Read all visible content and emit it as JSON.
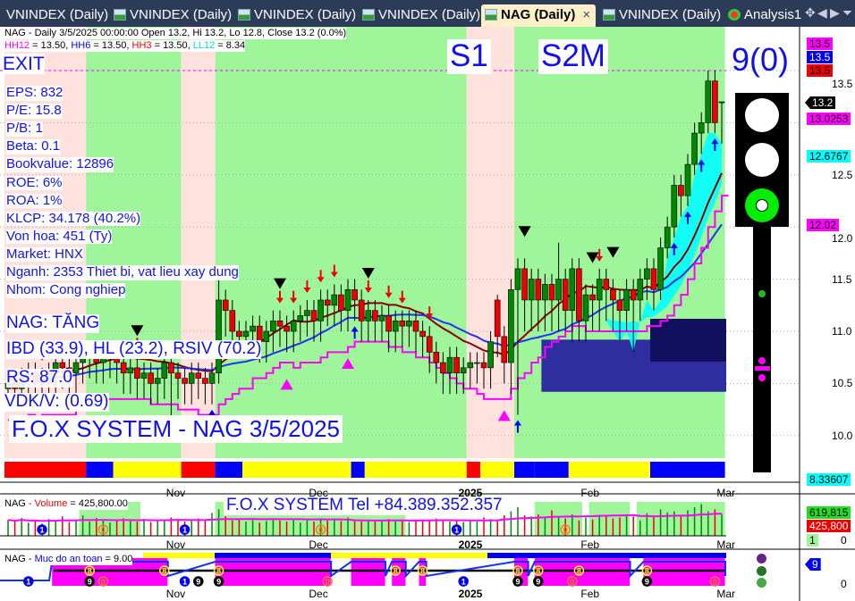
{
  "tabs": [
    {
      "label": "VNINDEX (Daily)",
      "active": false
    },
    {
      "label": "VNINDEX (Daily)",
      "active": false
    },
    {
      "label": "VNINDEX (Daily)",
      "active": false
    },
    {
      "label": "VNINDEX (Daily)",
      "active": false
    },
    {
      "label": "NAG (Daily)",
      "active": true
    },
    {
      "label": "VNINDEX (Daily)",
      "active": false
    },
    {
      "label": "Analysis1",
      "active": false
    }
  ],
  "tab_close": "×",
  "tab_controls": [
    "✥",
    "◀",
    "▶",
    "⏷"
  ],
  "header": {
    "line1": "NAG - Daily 3/5/2025 00:00:00 Open 13.2, Hi 13.2, Lo 12.8, Close 13.2 (0.0%)",
    "hh12": "HH12",
    "hh12_val": " = 13.50, ",
    "hh6": "HH6",
    "hh6_val": " = 13.50, ",
    "hh3": "HH3",
    "hh3_val": " = 13.50, ",
    "ll12": "LL12",
    "ll12_val": " = 8.34"
  },
  "signal": "EXIT",
  "fundamentals": [
    "EPS: 832",
    "P/E: 15.8",
    "P/B: 1",
    "Beta: 0.1",
    "Bookvalue: 12896",
    "ROE: 6%",
    "ROA: 1%",
    "KLCP: 34.178 (40.2%)",
    "Von hoa: 451 (Ty)",
    "Market: HNX",
    "Nganh: 2353 Thiet bi, vat lieu xay dung",
    "Nhom: Cong nghiep"
  ],
  "status": {
    "trend": "NAG: TĂNG",
    "ratings": "IBD (33.9), HL (23.2), RSIV (70.2)",
    "rs": "RS: 87.0",
    "vdk": "VDK/V:  (0.69)",
    "brand": "F.O.X SYSTEM - NAG 3/5/2025"
  },
  "phase_labels": [
    "S1",
    "S2M"
  ],
  "score": "9(0)",
  "traffic_light": {
    "red": "off",
    "yellow": "off",
    "green": "on"
  },
  "price_axis": {
    "ticks": [
      "13.5",
      "12.5",
      "12.0",
      "11.5",
      "11.0",
      "10.5",
      "10.0"
    ],
    "tags": [
      {
        "text": "13.5",
        "color": "#ff00ff"
      },
      {
        "text": "13.5",
        "color": "#0000ee"
      },
      {
        "text": "13.5",
        "color": "#ee0000"
      },
      {
        "text": "13.2",
        "color": "#000000"
      },
      {
        "text": "13.0253",
        "color": "#ff00ff"
      },
      {
        "text": "12.6767",
        "color": "#00ffff"
      },
      {
        "text": "12.02",
        "color": "#ff00ff"
      },
      {
        "text": "8.33607",
        "color": "#00ffff"
      }
    ]
  },
  "date_axis": [
    "Nov",
    "Dec",
    "2025",
    "Feb",
    "Mar"
  ],
  "colors": {
    "up": "#008800",
    "down": "#ee0000",
    "bg_green": "#9ef59a",
    "bg_pink": "#ffe2de",
    "accent": "#1010ee",
    "tabbar": "#2c3b57"
  },
  "volume_pane": {
    "title": "NAG",
    "title_sep": " - ",
    "series": "Volume",
    "value": " = 425,800.00",
    "banner": "F.O.X SYSTEM Tel +84.389.352.357",
    "tags": [
      {
        "text": "619,815",
        "color": "#22cc22"
      },
      {
        "text": "425,800",
        "color": "#ee0000"
      }
    ],
    "zero": "0",
    "one": "1"
  },
  "safety_pane": {
    "title": "NAG",
    "title_sep": " - ",
    "series": "Muc do an toan",
    "value": " = 9.00",
    "tag": "9",
    "zero": "0"
  },
  "chart_data": {
    "type": "candlestick",
    "symbol": "NAG",
    "interval": "Daily",
    "ylim": [
      9.6,
      13.9
    ],
    "candles_ohlc": [
      [
        10.45,
        10.6,
        10.3,
        10.5
      ],
      [
        10.5,
        10.6,
        10.25,
        10.45
      ],
      [
        10.45,
        10.65,
        10.25,
        10.55
      ],
      [
        10.55,
        10.7,
        10.35,
        10.6
      ],
      [
        10.6,
        10.7,
        10.3,
        10.5
      ],
      [
        10.5,
        10.65,
        10.3,
        10.55
      ],
      [
        10.55,
        10.7,
        10.35,
        10.6
      ],
      [
        10.6,
        10.8,
        10.4,
        10.7
      ],
      [
        10.7,
        10.8,
        10.45,
        10.65
      ],
      [
        10.65,
        10.75,
        10.4,
        10.6
      ],
      [
        10.6,
        10.8,
        10.4,
        10.7
      ],
      [
        10.7,
        10.85,
        10.5,
        10.75
      ],
      [
        10.75,
        10.9,
        10.55,
        10.8
      ],
      [
        10.8,
        10.9,
        10.5,
        10.7
      ],
      [
        10.7,
        10.85,
        10.5,
        10.75
      ],
      [
        10.75,
        10.9,
        10.55,
        10.8
      ],
      [
        10.8,
        10.9,
        10.5,
        10.7
      ],
      [
        10.7,
        10.8,
        10.4,
        10.6
      ],
      [
        10.6,
        10.75,
        10.4,
        10.65
      ],
      [
        10.65,
        10.75,
        10.35,
        10.55
      ],
      [
        10.55,
        10.7,
        10.35,
        10.6
      ],
      [
        10.6,
        10.7,
        10.3,
        10.5
      ],
      [
        10.5,
        10.65,
        10.3,
        10.55
      ],
      [
        10.55,
        10.8,
        10.35,
        10.7
      ],
      [
        10.7,
        10.8,
        9.95,
        10.6
      ],
      [
        10.6,
        10.7,
        10.35,
        10.55
      ],
      [
        10.55,
        10.65,
        10.3,
        10.5
      ],
      [
        10.5,
        10.7,
        10.3,
        10.6
      ],
      [
        10.6,
        10.7,
        10.35,
        10.55
      ],
      [
        10.55,
        10.65,
        10.3,
        10.5
      ],
      [
        10.5,
        10.7,
        10.3,
        10.6
      ],
      [
        10.6,
        11.5,
        10.5,
        11.3
      ],
      [
        11.3,
        11.4,
        10.95,
        11.2
      ],
      [
        11.2,
        11.3,
        10.8,
        11.0
      ],
      [
        11.0,
        11.1,
        10.75,
        10.95
      ],
      [
        10.95,
        11.1,
        10.75,
        11.0
      ],
      [
        11.0,
        11.15,
        10.8,
        11.05
      ],
      [
        11.05,
        11.15,
        10.7,
        10.9
      ],
      [
        10.9,
        11.1,
        10.7,
        11.0
      ],
      [
        11.0,
        11.2,
        10.8,
        11.1
      ],
      [
        11.1,
        11.2,
        10.85,
        11.05
      ],
      [
        11.05,
        11.15,
        10.8,
        11.0
      ],
      [
        11.0,
        11.2,
        10.8,
        11.1
      ],
      [
        11.1,
        11.25,
        10.9,
        11.15
      ],
      [
        11.15,
        11.3,
        10.95,
        11.2
      ],
      [
        11.2,
        11.3,
        10.9,
        11.1
      ],
      [
        11.1,
        11.4,
        10.9,
        11.3
      ],
      [
        11.3,
        11.4,
        11.05,
        11.25
      ],
      [
        11.25,
        11.45,
        11.05,
        11.35
      ],
      [
        11.35,
        11.45,
        11.0,
        11.2
      ],
      [
        11.2,
        11.5,
        11.0,
        11.4
      ],
      [
        11.4,
        11.5,
        11.1,
        11.3
      ],
      [
        11.3,
        11.4,
        10.9,
        11.1
      ],
      [
        11.1,
        11.3,
        10.9,
        11.2
      ],
      [
        11.2,
        11.3,
        10.9,
        11.1
      ],
      [
        11.1,
        11.25,
        10.9,
        11.15
      ],
      [
        11.15,
        11.25,
        10.8,
        11.0
      ],
      [
        11.0,
        11.2,
        10.8,
        11.1
      ],
      [
        11.1,
        11.2,
        10.85,
        11.05
      ],
      [
        11.05,
        11.2,
        10.85,
        11.1
      ],
      [
        11.1,
        11.2,
        10.8,
        11.0
      ],
      [
        11.0,
        11.1,
        10.75,
        10.95
      ],
      [
        10.95,
        11.05,
        10.6,
        10.8
      ],
      [
        10.8,
        10.9,
        10.5,
        10.7
      ],
      [
        10.7,
        10.8,
        10.4,
        10.6
      ],
      [
        10.6,
        10.85,
        10.4,
        10.75
      ],
      [
        10.75,
        10.85,
        10.4,
        10.6
      ],
      [
        10.6,
        10.75,
        10.4,
        10.65
      ],
      [
        10.65,
        10.8,
        10.45,
        10.7
      ],
      [
        10.7,
        10.8,
        10.5,
        10.7
      ],
      [
        10.7,
        10.8,
        10.45,
        10.65
      ],
      [
        10.65,
        11.0,
        10.45,
        10.9
      ],
      [
        11.3,
        11.35,
        10.75,
        10.95
      ],
      [
        10.95,
        11.05,
        10.5,
        10.7
      ],
      [
        10.7,
        11.5,
        10.4,
        11.4
      ],
      [
        11.4,
        11.7,
        10.2,
        11.6
      ],
      [
        11.6,
        11.7,
        11.0,
        11.3
      ],
      [
        11.3,
        11.6,
        11.0,
        11.5
      ],
      [
        11.5,
        11.6,
        11.0,
        11.3
      ],
      [
        11.3,
        11.55,
        11.0,
        11.45
      ],
      [
        11.45,
        11.55,
        11.0,
        11.3
      ],
      [
        11.3,
        11.85,
        11.0,
        11.5
      ],
      [
        11.5,
        11.6,
        11.0,
        11.2
      ],
      [
        11.2,
        11.7,
        10.9,
        11.6
      ],
      [
        11.6,
        11.7,
        10.9,
        11.1
      ],
      [
        11.1,
        11.45,
        10.9,
        11.35
      ],
      [
        11.35,
        11.45,
        11.0,
        11.3
      ],
      [
        11.3,
        11.6,
        11.0,
        11.5
      ],
      [
        11.5,
        11.6,
        11.1,
        11.4
      ],
      [
        11.4,
        11.5,
        11.0,
        11.3
      ],
      [
        11.3,
        11.4,
        10.9,
        11.2
      ],
      [
        11.2,
        11.5,
        11.0,
        11.4
      ],
      [
        11.4,
        11.5,
        10.8,
        11.3
      ],
      [
        11.3,
        11.6,
        11.1,
        11.5
      ],
      [
        11.5,
        11.7,
        11.3,
        11.6
      ],
      [
        11.6,
        11.7,
        11.2,
        11.4
      ],
      [
        11.4,
        11.9,
        11.3,
        11.8
      ],
      [
        11.8,
        12.1,
        11.7,
        12.0
      ],
      [
        12.0,
        12.5,
        11.9,
        12.4
      ],
      [
        12.4,
        12.5,
        12.1,
        12.3
      ],
      [
        12.3,
        12.7,
        12.2,
        12.6
      ],
      [
        12.6,
        13.0,
        12.5,
        12.9
      ],
      [
        12.9,
        13.1,
        12.7,
        13.0
      ],
      [
        13.0,
        13.5,
        12.9,
        13.4
      ],
      [
        13.4,
        13.5,
        12.9,
        13.0
      ],
      [
        13.2,
        13.2,
        12.8,
        13.2
      ]
    ],
    "date_label_bars": {
      "Nov": 23,
      "Dec": 44,
      "2025": 66,
      "Feb": 84,
      "Mar": 104
    },
    "hh12": 13.5,
    "hh6": 13.5,
    "hh3": 13.5,
    "ll12": 8.34,
    "zones": [
      {
        "from": 0,
        "to": 11,
        "state": "pink"
      },
      {
        "from": 12,
        "to": 25,
        "state": "green"
      },
      {
        "from": 26,
        "to": 30,
        "state": "pink"
      },
      {
        "from": 31,
        "to": 67,
        "state": "green"
      },
      {
        "from": 68,
        "to": 74,
        "state": "pink"
      },
      {
        "from": 75,
        "to": 105,
        "state": "green"
      }
    ],
    "boxes": [
      {
        "from": 79,
        "to": 105,
        "low": 10.42,
        "high": 10.92,
        "color": "#2e2ea0"
      },
      {
        "from": 95,
        "to": 105,
        "low": 10.71,
        "high": 11.12,
        "color": "#10105e"
      }
    ],
    "strip": [
      {
        "from": 0,
        "to": 11,
        "color": "#ff0000"
      },
      {
        "from": 12,
        "to": 15,
        "color": "#0000ff"
      },
      {
        "from": 16,
        "to": 25,
        "color": "#ffff00"
      },
      {
        "from": 26,
        "to": 30,
        "color": "#ff0000"
      },
      {
        "from": 31,
        "to": 34,
        "color": "#0000ff"
      },
      {
        "from": 35,
        "to": 50,
        "color": "#ffff00"
      },
      {
        "from": 51,
        "to": 52,
        "color": "#0000ff"
      },
      {
        "from": 53,
        "to": 67,
        "color": "#ffff00"
      },
      {
        "from": 68,
        "to": 69,
        "color": "#ff0000"
      },
      {
        "from": 70,
        "to": 74,
        "color": "#ffff00"
      },
      {
        "from": 75,
        "to": 77,
        "color": "#0000ff"
      },
      {
        "from": 78,
        "to": 82,
        "color": "#0000ff"
      },
      {
        "from": 83,
        "to": 94,
        "color": "#ffff00"
      },
      {
        "from": 95,
        "to": 105,
        "color": "#0000ff"
      }
    ],
    "signals": [
      {
        "bar": 5,
        "type": "sell"
      },
      {
        "bar": 19,
        "type": "sell"
      },
      {
        "bar": 30,
        "type": "buy"
      },
      {
        "bar": 32,
        "type": "buy"
      },
      {
        "bar": 40,
        "type": "sell"
      },
      {
        "bar": 42,
        "type": "sell"
      },
      {
        "bar": 44,
        "type": "sell"
      },
      {
        "bar": 46,
        "type": "sell"
      },
      {
        "bar": 48,
        "type": "sell"
      },
      {
        "bar": 51,
        "type": "buy"
      },
      {
        "bar": 53,
        "type": "sell"
      },
      {
        "bar": 56,
        "type": "sell"
      },
      {
        "bar": 58,
        "type": "sell"
      },
      {
        "bar": 62,
        "type": "sell"
      },
      {
        "bar": 75,
        "type": "buy"
      },
      {
        "bar": 87,
        "type": "sell"
      },
      {
        "bar": 98,
        "type": "buy"
      },
      {
        "bar": 100,
        "type": "buy"
      },
      {
        "bar": 102,
        "type": "buy"
      },
      {
        "bar": 104,
        "type": "buy"
      },
      {
        "bar": 19,
        "type": "top"
      },
      {
        "bar": 40,
        "type": "top"
      },
      {
        "bar": 53,
        "type": "top"
      },
      {
        "bar": 76,
        "type": "top"
      },
      {
        "bar": 86,
        "type": "top"
      },
      {
        "bar": 89,
        "type": "top"
      },
      {
        "bar": 41,
        "type": "warn"
      },
      {
        "bar": 50,
        "type": "warn"
      },
      {
        "bar": 73,
        "type": "warn"
      }
    ],
    "volume": [
      310,
      280,
      350,
      260,
      300,
      240,
      330,
      290,
      380,
      270,
      320,
      400,
      280,
      350,
      300,
      260,
      290,
      340,
      300,
      280,
      330,
      270,
      310,
      290,
      360,
      300,
      280,
      320,
      340,
      300,
      450,
      520,
      380,
      300,
      340,
      280,
      310,
      260,
      290,
      330,
      300,
      280,
      310,
      260,
      300,
      280,
      320,
      300,
      340,
      290,
      360,
      300,
      280,
      310,
      290,
      300,
      330,
      280,
      300,
      270,
      290,
      320,
      300,
      340,
      310,
      280,
      300,
      270,
      310,
      280,
      360,
      330,
      300,
      620,
      480,
      560,
      400,
      380,
      420,
      360,
      500,
      380,
      340,
      420,
      300,
      360,
      320,
      400,
      380,
      340,
      360,
      420,
      380,
      300,
      440,
      400,
      520,
      460,
      480,
      400,
      500,
      560,
      620,
      480,
      520,
      426
    ],
    "volume_zones": [
      {
        "from": 11,
        "to": 19
      },
      {
        "from": 31,
        "to": 58
      },
      {
        "from": 78,
        "to": 84
      },
      {
        "from": 86,
        "to": 91
      },
      {
        "from": 93,
        "to": 105
      }
    ],
    "volume_ylim": [
      0,
      700000
    ],
    "safety_level": 9,
    "safety_zones": [
      {
        "from": 7,
        "to": 23
      },
      {
        "from": 31,
        "to": 47
      },
      {
        "from": 51,
        "to": 55
      },
      {
        "from": 57,
        "to": 58
      },
      {
        "from": 61,
        "to": 61
      },
      {
        "from": 75,
        "to": 76
      },
      {
        "from": 78,
        "to": 91
      },
      {
        "from": 94,
        "to": 105
      }
    ],
    "pane_markers": [
      {
        "bar": 5,
        "pane": "volume",
        "text": "1",
        "color": "#0000ee"
      },
      {
        "bar": 14,
        "pane": "volume",
        "text": "0",
        "color": "#ff7722"
      },
      {
        "bar": 26,
        "pane": "volume",
        "text": "1",
        "color": "#0000ee"
      },
      {
        "bar": 46,
        "pane": "volume",
        "text": "0",
        "color": "#ff7722"
      },
      {
        "bar": 66,
        "pane": "volume",
        "text": "1",
        "color": "#0000ee"
      },
      {
        "bar": 82,
        "pane": "volume",
        "text": "0",
        "color": "#ff7722"
      },
      {
        "bar": 3,
        "pane": "safety",
        "text": "1",
        "color": "#0000ee"
      },
      {
        "bar": 12,
        "pane": "safety",
        "text": "9",
        "color": "#000000"
      },
      {
        "bar": 14,
        "pane": "safety",
        "text": "0",
        "color": "#ff7722"
      },
      {
        "bar": 26,
        "pane": "safety",
        "text": "1",
        "color": "#0000ee"
      },
      {
        "bar": 28,
        "pane": "safety",
        "text": "9",
        "color": "#000000"
      },
      {
        "bar": 31,
        "pane": "safety",
        "text": "9",
        "color": "#000000"
      },
      {
        "bar": 47,
        "pane": "safety",
        "text": "0",
        "color": "#ff7722"
      },
      {
        "bar": 67,
        "pane": "safety",
        "text": "1",
        "color": "#0000ee"
      },
      {
        "bar": 75,
        "pane": "safety",
        "text": "9",
        "color": "#000000"
      },
      {
        "bar": 78,
        "pane": "safety",
        "text": "9",
        "color": "#000000"
      },
      {
        "bar": 83,
        "pane": "safety",
        "text": "0",
        "color": "#ff7722"
      },
      {
        "bar": 94,
        "pane": "safety",
        "text": "9",
        "color": "#000000"
      },
      {
        "bar": 104,
        "pane": "safety",
        "text": "0",
        "color": "#ff7722"
      },
      {
        "bar": 12,
        "pane": "safety8",
        "text": "8",
        "color": "#ffff00"
      },
      {
        "bar": 23,
        "pane": "safety8",
        "text": "8",
        "color": "#ffff00"
      },
      {
        "bar": 31,
        "pane": "safety8",
        "text": "8",
        "color": "#ffff00"
      },
      {
        "bar": 57,
        "pane": "safety8",
        "text": "8",
        "color": "#ffff00"
      },
      {
        "bar": 61,
        "pane": "safety8",
        "text": "8",
        "color": "#ffff00"
      },
      {
        "bar": 75,
        "pane": "safety8",
        "text": "8",
        "color": "#ffff00"
      },
      {
        "bar": 78,
        "pane": "safety8",
        "text": "8",
        "color": "#ffff00"
      },
      {
        "bar": 84,
        "pane": "safety8",
        "text": "8",
        "color": "#ffff00"
      },
      {
        "bar": 94,
        "pane": "safety8",
        "text": "8",
        "color": "#ffff00"
      }
    ]
  }
}
